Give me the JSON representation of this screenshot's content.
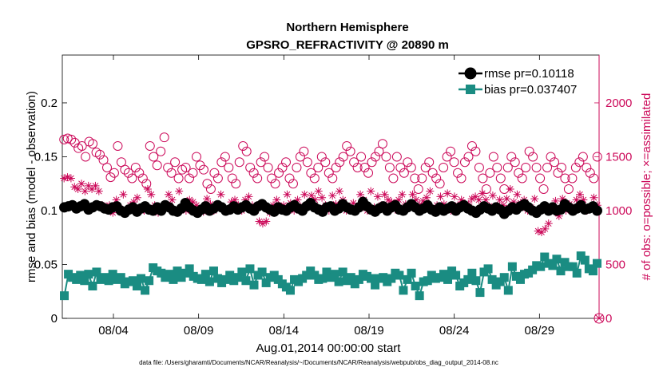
{
  "chart_data": {
    "type": "scatter",
    "title": "Northern Hemisphere",
    "subtitle": "GPSRO_REFRACTIVITY @ 20890 m",
    "xlabel": "Aug.01,2014 00:00:00 start",
    "ylabel_left": "rmse and bias (model - observation)",
    "ylabel_right": "# of obs: o=possible; ×=assimilated",
    "footer": "data file: /Users/gharamti/Documents/NCAR/Reanalysis/~/Documents/NCAR/Reanalysis/webpub/obs_diag_output_2014-08.nc",
    "xlim": [
      1,
      32.5
    ],
    "ylim_left": [
      0,
      0.2444
    ],
    "ylim_right": [
      0,
      2444
    ],
    "x_ticks": [
      4,
      9,
      14,
      19,
      24,
      29
    ],
    "x_tick_labels": [
      "08/04",
      "08/09",
      "08/14",
      "08/19",
      "08/24",
      "08/29"
    ],
    "y_left_ticks": [
      0,
      0.05,
      0.1,
      0.15,
      0.2
    ],
    "y_left_tick_labels": [
      "0",
      "0.05",
      "0.1",
      "0.15",
      "0.2"
    ],
    "y_right_ticks": [
      0,
      500,
      1000,
      1500,
      2000
    ],
    "y_right_tick_labels": [
      "0",
      "500",
      "1000",
      "1500",
      "2000"
    ],
    "legend": [
      {
        "name": "rmse",
        "label": "rmse pr=0.10118"
      },
      {
        "name": "bias",
        "label": "bias pr=0.037407"
      }
    ],
    "colors": {
      "rmse": "#000000",
      "bias": "#1a8c82",
      "obs": "#cc0a5a"
    },
    "series": [
      {
        "name": "rmse",
        "axis": "left",
        "y": [
          0.103,
          0.104,
          0.105,
          0.102,
          0.104,
          0.106,
          0.101,
          0.103,
          0.105,
          0.104,
          0.102,
          0.101,
          0.103,
          0.104,
          0.1,
          0.098,
          0.101,
          0.103,
          0.099,
          0.102,
          0.104,
          0.101,
          0.1,
          0.103,
          0.1,
          0.105,
          0.103,
          0.1,
          0.099,
          0.102,
          0.107,
          0.103,
          0.1,
          0.098,
          0.101,
          0.104,
          0.1,
          0.102,
          0.105,
          0.103,
          0.1,
          0.101,
          0.104,
          0.101,
          0.103,
          0.105,
          0.102,
          0.1,
          0.104,
          0.106,
          0.103,
          0.101,
          0.099,
          0.103,
          0.101,
          0.1,
          0.103,
          0.105,
          0.102,
          0.1,
          0.104,
          0.107,
          0.103,
          0.101,
          0.099,
          0.103,
          0.104,
          0.1,
          0.102,
          0.106,
          0.103,
          0.101,
          0.1,
          0.103,
          0.108,
          0.104,
          0.101,
          0.099,
          0.102,
          0.104,
          0.1,
          0.103,
          0.105,
          0.101,
          0.1,
          0.103,
          0.106,
          0.103,
          0.1,
          0.102,
          0.105,
          0.101,
          0.099,
          0.103,
          0.1,
          0.102,
          0.104,
          0.1,
          0.103,
          0.105,
          0.102,
          0.1,
          0.098,
          0.101,
          0.104,
          0.102,
          0.1,
          0.103,
          0.101,
          0.097,
          0.1,
          0.103,
          0.101,
          0.104,
          0.106,
          0.103,
          0.1,
          0.098,
          0.101,
          0.104,
          0.1,
          0.103,
          0.1,
          0.101,
          0.106,
          0.103,
          0.1,
          0.102,
          0.105,
          0.101,
          0.102,
          0.104,
          0.1
        ]
      },
      {
        "name": "bias",
        "axis": "left",
        "y": [
          0.021,
          0.041,
          0.038,
          0.036,
          0.04,
          0.035,
          0.041,
          0.03,
          0.043,
          0.036,
          0.038,
          0.035,
          0.041,
          0.036,
          0.038,
          0.032,
          0.034,
          0.035,
          0.03,
          0.037,
          0.026,
          0.035,
          0.047,
          0.044,
          0.042,
          0.038,
          0.041,
          0.036,
          0.044,
          0.038,
          0.042,
          0.046,
          0.039,
          0.037,
          0.036,
          0.041,
          0.034,
          0.044,
          0.037,
          0.033,
          0.036,
          0.04,
          0.035,
          0.038,
          0.043,
          0.035,
          0.046,
          0.031,
          0.04,
          0.043,
          0.033,
          0.038,
          0.04,
          0.036,
          0.032,
          0.029,
          0.026,
          0.036,
          0.034,
          0.037,
          0.04,
          0.044,
          0.04,
          0.036,
          0.037,
          0.043,
          0.038,
          0.041,
          0.034,
          0.043,
          0.035,
          0.038,
          0.032,
          0.036,
          0.041,
          0.039,
          0.037,
          0.031,
          0.037,
          0.038,
          0.034,
          0.037,
          0.042,
          0.04,
          0.026,
          0.036,
          0.042,
          0.03,
          0.021,
          0.034,
          0.035,
          0.04,
          0.037,
          0.038,
          0.041,
          0.036,
          0.044,
          0.04,
          0.03,
          0.033,
          0.036,
          0.042,
          0.035,
          0.024,
          0.043,
          0.046,
          0.036,
          0.031,
          0.034,
          0.038,
          0.026,
          0.048,
          0.039,
          0.036,
          0.041,
          0.042,
          0.045,
          0.049,
          0.048,
          0.057,
          0.051,
          0.049,
          0.055,
          0.044,
          0.052,
          0.048,
          0.048,
          0.042,
          0.058,
          0.054,
          0.046,
          0.044,
          0.051
        ]
      },
      {
        "name": "possible",
        "axis": "right",
        "y": [
          1660,
          1670,
          1660,
          1630,
          1580,
          1600,
          1500,
          1640,
          1620,
          1540,
          1520,
          1470,
          1400,
          1310,
          1350,
          1600,
          1450,
          1380,
          1350,
          1300,
          1400,
          1350,
          1300,
          1250,
          1600,
          1500,
          1420,
          1550,
          1680,
          1400,
          1350,
          1450,
          1300,
          1380,
          1400,
          1300,
          1350,
          1500,
          1420,
          1380,
          1250,
          1200,
          1350,
          1300,
          1450,
          1500,
          1400,
          1300,
          1250,
          1450,
          1600,
          1550,
          1400,
          1350,
          1300,
          1450,
          1500,
          1400,
          1300,
          1250,
          1350,
          1400,
          1450,
          1300,
          1250,
          1400,
          1500,
          1550,
          1450,
          1350,
          1300,
          1400,
          1500,
          1450,
          1350,
          1300,
          1400,
          1450,
          1500,
          1600,
          1550,
          1450,
          1400,
          1500,
          1400,
          1350,
          1450,
          1500,
          1550,
          1620,
          1500,
          1400,
          1300,
          1500,
          1400,
          1350,
          1450,
          1400,
          1300,
          1200,
          1300,
          1400,
          1450,
          1350,
          1300,
          1250,
          1400,
          1500,
          1550,
          1450,
          1350,
          1300,
          1450,
          1500,
          1600,
          1550,
          1400,
          1300,
          1200,
          1350,
          1500,
          1400,
          1300,
          1200,
          1400,
          1500,
          1450,
          1350,
          1300,
          1400,
          1550,
          1500,
          1400,
          1300,
          1200,
          1400,
          1500,
          1450,
          1350,
          1400,
          1300,
          1200,
          1300,
          1400,
          1450,
          1500,
          1400,
          1350,
          1300,
          1500
        ]
      },
      {
        "name": "assimilated",
        "axis": "right",
        "y": [
          1300,
          1310,
          1300,
          1220,
          1200,
          1250,
          1180,
          1230,
          1200,
          1230,
          1180,
          1050,
          1030,
          1050,
          980,
          1100,
          1020,
          1150,
          1000,
          1050,
          1080,
          1120,
          1000,
          1000,
          1200,
          1150,
          1050,
          980,
          1000,
          1020,
          1150,
          1100,
          1000,
          1180,
          1030,
          1000,
          1100,
          1080,
          1050,
          1000,
          990,
          1110,
          1060,
          1000,
          1040,
          1150,
          1020,
          1000,
          1080,
          1100,
          1050,
          1000,
          1100,
          1130,
          1050,
          1000,
          900,
          880,
          900,
          980,
          1050,
          1100,
          1030,
          1050,
          1150,
          1070,
          1000,
          1100,
          1030,
          1150,
          1060,
          1140,
          1100,
          1180,
          1120,
          1050,
          1000,
          1140,
          1060,
          1180,
          1100,
          1000,
          1040,
          1070,
          1020,
          1150,
          1100,
          1000,
          1180,
          1030,
          1130,
          1050,
          1150,
          1100,
          1080,
          1010,
          1100,
          1150,
          1060,
          1030,
          1150,
          1100,
          1050,
          1090,
          1120,
          1180,
          1000,
          1050,
          1130,
          1060,
          1160,
          1000,
          1130,
          1050,
          1100,
          1020,
          1060,
          1110,
          1130,
          1100,
          1160,
          1100,
          1040,
          1140,
          1020,
          1100,
          1050,
          1110,
          1200,
          1080,
          1150,
          1070,
          1100,
          1000,
          1030,
          1110,
          810,
          800,
          830,
          880,
          1000,
          1090,
          950,
          1110,
          1000,
          1060,
          1020,
          1100,
          1150,
          1100,
          1000,
          1030,
          1120,
          1050
        ]
      }
    ]
  }
}
